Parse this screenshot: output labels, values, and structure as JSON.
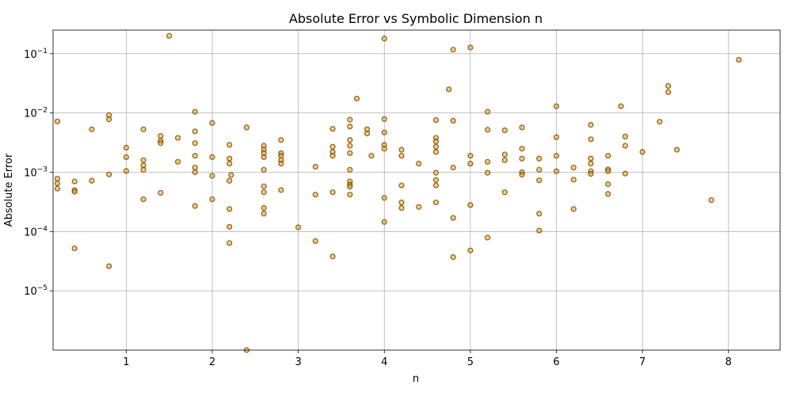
{
  "chart_data": {
    "type": "scatter",
    "title": "Absolute Error vs Symbolic Dimension n",
    "xlabel": "n",
    "ylabel": "Absolute Error",
    "xlim": [
      0.15,
      8.6
    ],
    "ylim": [
      1e-06,
      0.25
    ],
    "yscale": "log",
    "grid": true,
    "x_ticks": [
      1,
      2,
      3,
      4,
      5,
      6,
      7,
      8
    ],
    "x_tick_labels": [
      "1",
      "2",
      "3",
      "4",
      "5",
      "6",
      "7",
      "8"
    ],
    "y_ticks": [
      1e-05,
      0.0001,
      0.001,
      0.01,
      0.1
    ],
    "y_tick_mantissa": "10",
    "y_tick_exponents": [
      "−5",
      "−4",
      "−3",
      "−2",
      "−1"
    ],
    "marker_fill": "#e8a317",
    "marker_edge": "#6b3f00",
    "marker_alpha": 0.55,
    "points": [
      [
        0.2,
        0.0072
      ],
      [
        0.2,
        0.00078
      ],
      [
        0.2,
        0.00065
      ],
      [
        0.2,
        0.00053
      ],
      [
        0.4,
        0.0007
      ],
      [
        0.4,
        0.0005
      ],
      [
        0.4,
        0.00047
      ],
      [
        0.4,
        5.2e-05
      ],
      [
        0.6,
        0.0053
      ],
      [
        0.6,
        0.00072
      ],
      [
        0.8,
        0.0092
      ],
      [
        0.8,
        0.0078
      ],
      [
        0.8,
        0.00092
      ],
      [
        0.8,
        2.6e-05
      ],
      [
        1.0,
        0.0026
      ],
      [
        1.0,
        0.0018
      ],
      [
        1.0,
        0.00105
      ],
      [
        1.2,
        0.0053
      ],
      [
        1.2,
        0.0016
      ],
      [
        1.2,
        0.0013
      ],
      [
        1.2,
        0.0011
      ],
      [
        1.2,
        0.00035
      ],
      [
        1.4,
        0.0041
      ],
      [
        1.4,
        0.0034
      ],
      [
        1.4,
        0.0031
      ],
      [
        1.4,
        0.00045
      ],
      [
        1.5,
        0.2
      ],
      [
        1.6,
        0.0038
      ],
      [
        1.6,
        0.0015
      ],
      [
        1.8,
        0.0105
      ],
      [
        1.8,
        0.0049
      ],
      [
        1.8,
        0.0031
      ],
      [
        1.8,
        0.0019
      ],
      [
        1.8,
        0.0012
      ],
      [
        1.8,
        0.001
      ],
      [
        1.8,
        0.00027
      ],
      [
        2.0,
        0.0068
      ],
      [
        2.0,
        0.0018
      ],
      [
        2.0,
        0.00087
      ],
      [
        2.0,
        0.00035
      ],
      [
        2.2,
        0.0029
      ],
      [
        2.2,
        0.0017
      ],
      [
        2.2,
        0.0014
      ],
      [
        2.2,
        0.00072
      ],
      [
        2.2,
        0.00024
      ],
      [
        2.2,
        0.00012
      ],
      [
        2.2,
        6.4e-05
      ],
      [
        2.22,
        0.0009
      ],
      [
        2.4,
        0.0057
      ],
      [
        2.4,
        1e-06
      ],
      [
        2.6,
        0.0028
      ],
      [
        2.6,
        0.0024
      ],
      [
        2.6,
        0.0021
      ],
      [
        2.6,
        0.0018
      ],
      [
        2.6,
        0.0011
      ],
      [
        2.6,
        0.00058
      ],
      [
        2.6,
        0.00046
      ],
      [
        2.6,
        0.00025
      ],
      [
        2.6,
        0.0002
      ],
      [
        2.8,
        0.0035
      ],
      [
        2.8,
        0.0021
      ],
      [
        2.8,
        0.0019
      ],
      [
        2.8,
        0.0016
      ],
      [
        2.8,
        0.0014
      ],
      [
        2.8,
        0.0005
      ],
      [
        3.0,
        0.000118
      ],
      [
        3.2,
        0.00124
      ],
      [
        3.2,
        0.00042
      ],
      [
        3.2,
        6.9e-05
      ],
      [
        3.4,
        0.0054
      ],
      [
        3.4,
        0.0027
      ],
      [
        3.4,
        0.0022
      ],
      [
        3.4,
        0.0019
      ],
      [
        3.4,
        0.00046
      ],
      [
        3.4,
        3.8e-05
      ],
      [
        3.6,
        0.0077
      ],
      [
        3.6,
        0.0059
      ],
      [
        3.6,
        0.0035
      ],
      [
        3.6,
        0.0028
      ],
      [
        3.6,
        0.0021
      ],
      [
        3.6,
        0.0011
      ],
      [
        3.6,
        0.0007
      ],
      [
        3.6,
        0.00062
      ],
      [
        3.6,
        0.00057
      ],
      [
        3.6,
        0.00042
      ],
      [
        3.68,
        0.0175
      ],
      [
        3.8,
        0.0053
      ],
      [
        3.8,
        0.0045
      ],
      [
        3.85,
        0.0019
      ],
      [
        4.0,
        0.18
      ],
      [
        4.0,
        0.0079
      ],
      [
        4.0,
        0.0047
      ],
      [
        4.0,
        0.0029
      ],
      [
        4.0,
        0.0025
      ],
      [
        4.0,
        0.00037
      ],
      [
        4.0,
        0.000145
      ],
      [
        4.2,
        0.0024
      ],
      [
        4.2,
        0.0019
      ],
      [
        4.2,
        0.0006
      ],
      [
        4.2,
        0.00031
      ],
      [
        4.2,
        0.00025
      ],
      [
        4.4,
        0.0014
      ],
      [
        4.4,
        0.00026
      ],
      [
        4.6,
        0.0076
      ],
      [
        4.6,
        0.0038
      ],
      [
        4.6,
        0.0033
      ],
      [
        4.6,
        0.0027
      ],
      [
        4.6,
        0.0022
      ],
      [
        4.6,
        0.00098
      ],
      [
        4.6,
        0.00074
      ],
      [
        4.6,
        0.0006
      ],
      [
        4.6,
        0.00031
      ],
      [
        4.75,
        0.025
      ],
      [
        4.8,
        0.117
      ],
      [
        4.8,
        0.0074
      ],
      [
        4.8,
        0.0012
      ],
      [
        4.8,
        0.00017
      ],
      [
        4.8,
        3.7e-05
      ],
      [
        5.0,
        0.127
      ],
      [
        5.0,
        0.0019
      ],
      [
        5.0,
        0.0014
      ],
      [
        5.0,
        0.00028
      ],
      [
        5.0,
        4.8e-05
      ],
      [
        5.2,
        0.0105
      ],
      [
        5.2,
        0.0052
      ],
      [
        5.2,
        0.0015
      ],
      [
        5.2,
        0.00098
      ],
      [
        5.2,
        7.9e-05
      ],
      [
        5.4,
        0.0051
      ],
      [
        5.4,
        0.002
      ],
      [
        5.4,
        0.0016
      ],
      [
        5.4,
        0.00046
      ],
      [
        5.6,
        0.0057
      ],
      [
        5.6,
        0.0025
      ],
      [
        5.6,
        0.0017
      ],
      [
        5.6,
        0.001
      ],
      [
        5.6,
        0.00091
      ],
      [
        5.8,
        0.0017
      ],
      [
        5.8,
        0.0011
      ],
      [
        5.8,
        0.00073
      ],
      [
        5.8,
        0.0002
      ],
      [
        5.8,
        0.000104
      ],
      [
        6.0,
        0.013
      ],
      [
        6.0,
        0.0039
      ],
      [
        6.0,
        0.0019
      ],
      [
        6.0,
        0.00104
      ],
      [
        6.2,
        0.0012
      ],
      [
        6.2,
        0.00075
      ],
      [
        6.2,
        0.00024
      ],
      [
        6.4,
        0.0063
      ],
      [
        6.4,
        0.0036
      ],
      [
        6.4,
        0.0017
      ],
      [
        6.4,
        0.0014
      ],
      [
        6.4,
        0.00104
      ],
      [
        6.4,
        0.00094
      ],
      [
        6.6,
        0.0019
      ],
      [
        6.6,
        0.00112
      ],
      [
        6.6,
        0.00104
      ],
      [
        6.6,
        0.00063
      ],
      [
        6.6,
        0.00043
      ],
      [
        6.75,
        0.013
      ],
      [
        6.8,
        0.004
      ],
      [
        6.8,
        0.0028
      ],
      [
        6.8,
        0.00095
      ],
      [
        7.0,
        0.0022
      ],
      [
        7.2,
        0.0071
      ],
      [
        7.3,
        0.0285
      ],
      [
        7.3,
        0.0225
      ],
      [
        7.4,
        0.0024
      ],
      [
        7.8,
        0.00034
      ],
      [
        8.12,
        0.079
      ]
    ]
  }
}
